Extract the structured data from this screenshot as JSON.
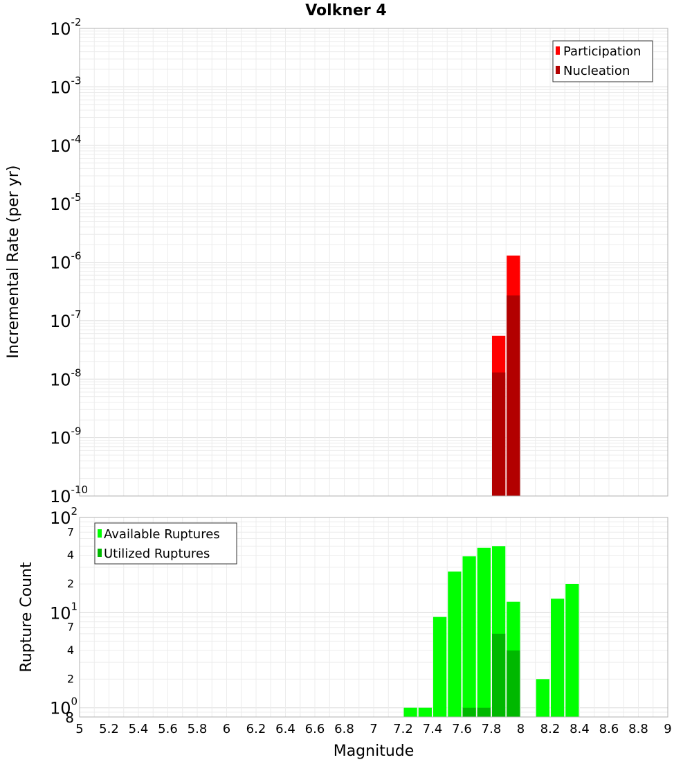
{
  "chart_data": [
    {
      "type": "bar",
      "title": "Volkner 4",
      "xlabel": "",
      "ylabel": "Incremental Rate (per yr)",
      "yscale": "log",
      "ylim": [
        1e-10,
        0.01
      ],
      "xlim": [
        5,
        9
      ],
      "y_ticks": [
        {
          "base": "10",
          "exp": "-10"
        },
        {
          "base": "10",
          "exp": "-9"
        },
        {
          "base": "10",
          "exp": "-8"
        },
        {
          "base": "10",
          "exp": "-7"
        },
        {
          "base": "10",
          "exp": "-6"
        },
        {
          "base": "10",
          "exp": "-5"
        },
        {
          "base": "10",
          "exp": "-4"
        },
        {
          "base": "10",
          "exp": "-3"
        },
        {
          "base": "10",
          "exp": "-2"
        }
      ],
      "legend_position": "top-right",
      "grid": true,
      "series": [
        {
          "name": "Participation",
          "color": "#ff0000",
          "x": [
            7.85,
            7.95
          ],
          "values": [
            5.5e-08,
            1.3e-06
          ]
        },
        {
          "name": "Nucleation",
          "color": "#b20000",
          "x": [
            7.85,
            7.95
          ],
          "values": [
            1.3e-08,
            2.7e-07
          ]
        }
      ]
    },
    {
      "type": "bar",
      "title": "",
      "xlabel": "Magnitude",
      "ylabel": "Rupture Count",
      "yscale": "log",
      "ylim": [
        0.8,
        100
      ],
      "xlim": [
        5,
        9
      ],
      "x_ticks": [
        "5",
        "5.2",
        "5.4",
        "5.6",
        "5.8",
        "6",
        "6.2",
        "6.4",
        "6.6",
        "6.8",
        "7",
        "7.2",
        "7.4",
        "7.6",
        "7.8",
        "8",
        "8.2",
        "8.4",
        "8.6",
        "8.8",
        "9"
      ],
      "y_major_ticks": [
        {
          "base": "10",
          "exp": "0"
        },
        {
          "base": "10",
          "exp": "1"
        },
        {
          "base": "10",
          "exp": "2"
        }
      ],
      "y_minor_ticks": [
        "8",
        "2",
        "4",
        "7",
        "2",
        "4",
        "7"
      ],
      "legend_position": "top-left",
      "grid": true,
      "series": [
        {
          "name": "Available Ruptures",
          "color": "#00ff00",
          "x": [
            7.25,
            7.35,
            7.45,
            7.55,
            7.65,
            7.75,
            7.85,
            7.95,
            8.15,
            8.25,
            8.35
          ],
          "values": [
            1,
            1,
            9,
            27,
            39,
            48,
            50,
            13,
            2,
            14,
            20
          ]
        },
        {
          "name": "Utilized Ruptures",
          "color": "#00b800",
          "x": [
            7.65,
            7.75,
            7.85,
            7.95
          ],
          "values": [
            1,
            1,
            6,
            4
          ]
        }
      ]
    }
  ]
}
